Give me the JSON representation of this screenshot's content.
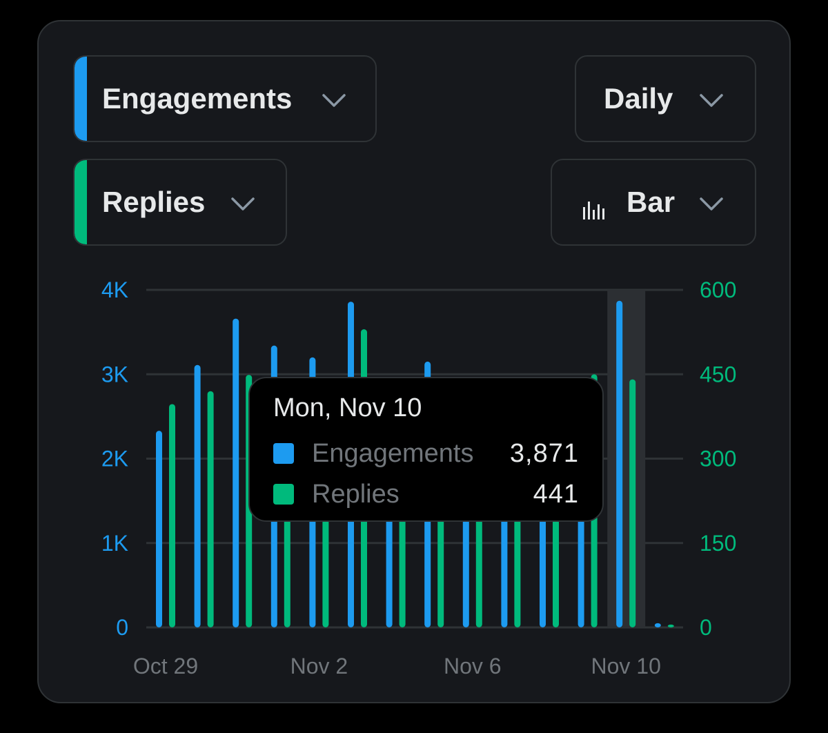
{
  "controls": {
    "metric1": {
      "label": "Engagements",
      "color": "#1d9bf0"
    },
    "metric2": {
      "label": "Replies",
      "color": "#00ba7c"
    },
    "interval": {
      "label": "Daily"
    },
    "chart_type": {
      "label": "Bar",
      "icon": "bar-chart-icon"
    }
  },
  "icons": {
    "dropdown": "chevron-down-icon"
  },
  "colors": {
    "background": "#000000",
    "card": "#16181c",
    "border": "#2f3336",
    "text": "#e7e9ea",
    "muted": "#71767b",
    "engagements": "#1d9bf0",
    "replies": "#00ba7c"
  },
  "tooltip": {
    "title": "Mon, Nov 10",
    "rows": [
      {
        "name": "Engagements",
        "value": "3,871",
        "color": "#1d9bf0"
      },
      {
        "name": "Replies",
        "value": "441",
        "color": "#00ba7c"
      }
    ]
  },
  "chart_data": {
    "type": "bar",
    "categories": [
      "Oct 29",
      "Oct 30",
      "Oct 31",
      "Nov 1",
      "Nov 2",
      "Nov 3",
      "Nov 4",
      "Nov 5",
      "Nov 6",
      "Nov 7",
      "Nov 8",
      "Nov 9",
      "Nov 10",
      "Nov 11"
    ],
    "x_tick_labels": [
      "Oct 29",
      "Nov 2",
      "Nov 6",
      "Nov 10"
    ],
    "highlighted_category": "Nov 10",
    "series": [
      {
        "name": "Engagements",
        "axis": "left",
        "color": "#1d9bf0",
        "values": [
          2330,
          3110,
          3660,
          3340,
          3200,
          3860,
          2900,
          3150,
          2500,
          2650,
          2800,
          2900,
          3871,
          50
        ]
      },
      {
        "name": "Replies",
        "axis": "right",
        "color": "#00ba7c",
        "values": [
          397,
          420,
          449,
          400,
          380,
          530,
          420,
          430,
          380,
          390,
          400,
          450,
          441,
          5
        ]
      }
    ],
    "y_left": {
      "ticks": [
        0,
        1000,
        2000,
        3000,
        4000
      ],
      "tick_labels": [
        "0",
        "1K",
        "2K",
        "3K",
        "4K"
      ],
      "range": [
        0,
        4000
      ]
    },
    "y_right": {
      "ticks": [
        0,
        150,
        300,
        450,
        600
      ],
      "tick_labels": [
        "0",
        "150",
        "300",
        "450",
        "600"
      ],
      "range": [
        0,
        600
      ]
    },
    "grid": true,
    "title": "",
    "xlabel": "",
    "ylabel": ""
  }
}
